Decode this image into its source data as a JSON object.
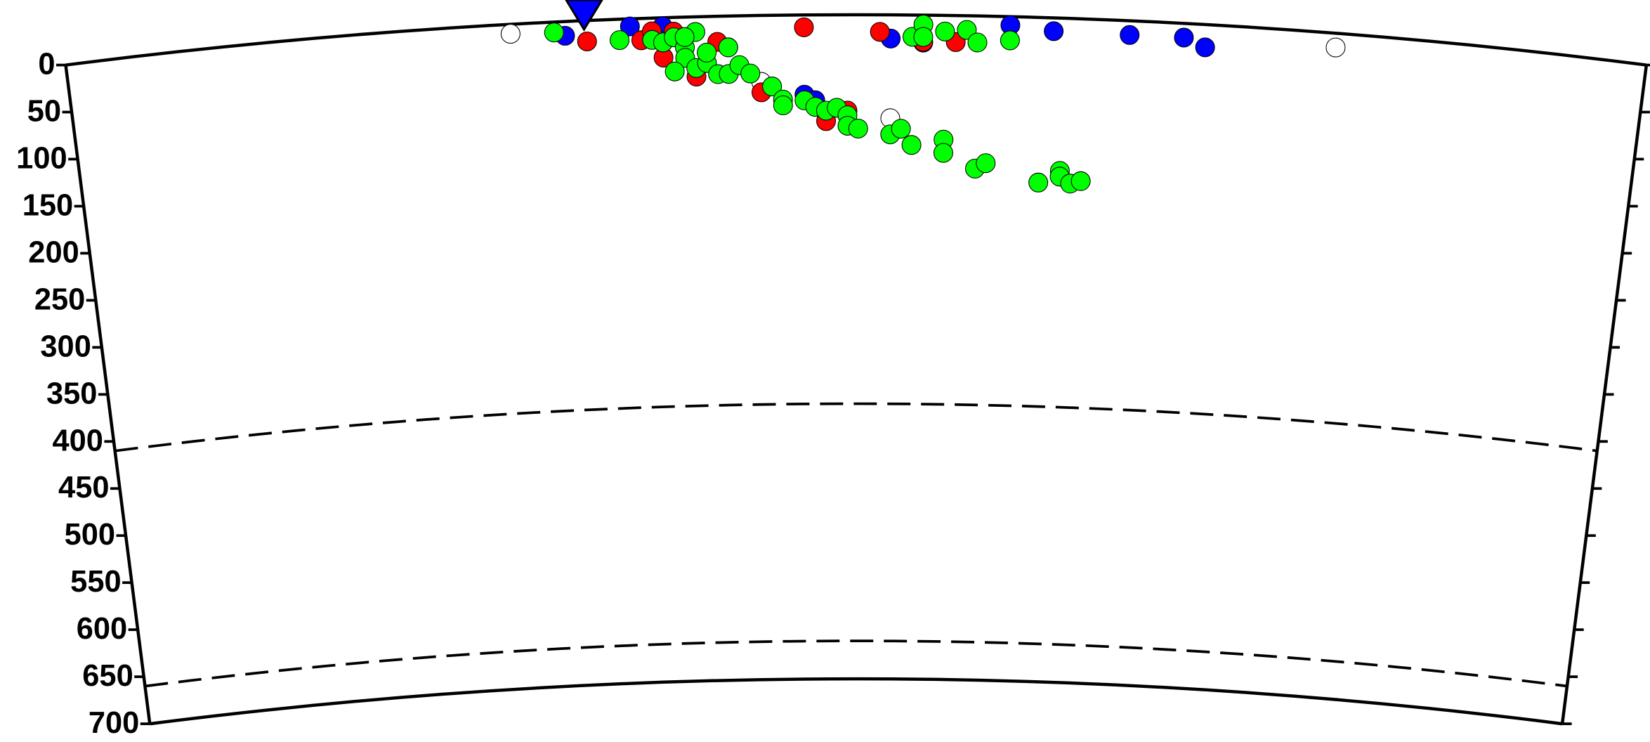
{
  "chart_data": {
    "type": "scatter",
    "xlim": [
      0,
      14.56
    ],
    "ylim": [
      0,
      700
    ],
    "yticks": [
      0,
      50,
      100,
      150,
      200,
      250,
      300,
      350,
      400,
      450,
      500,
      550,
      600,
      650,
      700
    ],
    "reference_lines": [
      410,
      660
    ],
    "series": [
      {
        "color": "#ffffff",
        "x": [
          4.1,
          6.1,
          6.4,
          7.6,
          11.7
        ],
        "values": [
          10,
          33,
          70,
          109,
          15
        ]
      },
      {
        "color": "#0000ff",
        "x": [
          4.6,
          5.2,
          5.5,
          6.8,
          6.9,
          7.6,
          7.9,
          8.7,
          9.1,
          9.8,
          10.3,
          10.5
        ],
        "values": [
          15,
          8,
          9,
          84,
          90,
          25,
          29,
          9,
          14,
          15,
          15,
          24
        ]
      },
      {
        "color": "#ff0000",
        "x": [
          4.8,
          5.3,
          5.4,
          5.6,
          5.5,
          5.8,
          6.0,
          6.4,
          6.8,
          7.0,
          7.2,
          7.5,
          7.9,
          8.2
        ],
        "values": [
          22,
          23,
          14,
          15,
          42,
          63,
          27,
          81,
          13,
          112,
          101,
          18,
          28,
          28
        ]
      },
      {
        "color": "#00ff00",
        "x": [
          4.5,
          5.1,
          5.4,
          5.5,
          5.6,
          5.7,
          5.7,
          5.8,
          5.8,
          5.9,
          5.9,
          6.0,
          6.1,
          6.1,
          6.2,
          6.3,
          6.5,
          6.6,
          6.6,
          6.8,
          6.9,
          7.0,
          7.1,
          7.2,
          7.2,
          7.3,
          7.6,
          7.7,
          7.8,
          8.1,
          8.1,
          8.4,
          8.5,
          7.8,
          7.9,
          7.9,
          8.1,
          8.3,
          8.4,
          8.7,
          9.0,
          9.2,
          9.2,
          9.3,
          9.4,
          5.6,
          5.7
        ],
        "values": [
          11,
          22,
          23,
          26,
          21,
          32,
          43,
          16,
          54,
          49,
          38,
          61,
          33,
          61,
          52,
          61,
          75,
          89,
          95,
          90,
          97,
          101,
          98,
          106,
          117,
          120,
          126,
          120,
          137,
          131,
          145,
          161,
          155,
          23,
          10,
          23,
          17,
          15,
          28,
          25,
          174,
          161,
          167,
          174,
          171,
          57,
          21
        ]
      }
    ]
  }
}
